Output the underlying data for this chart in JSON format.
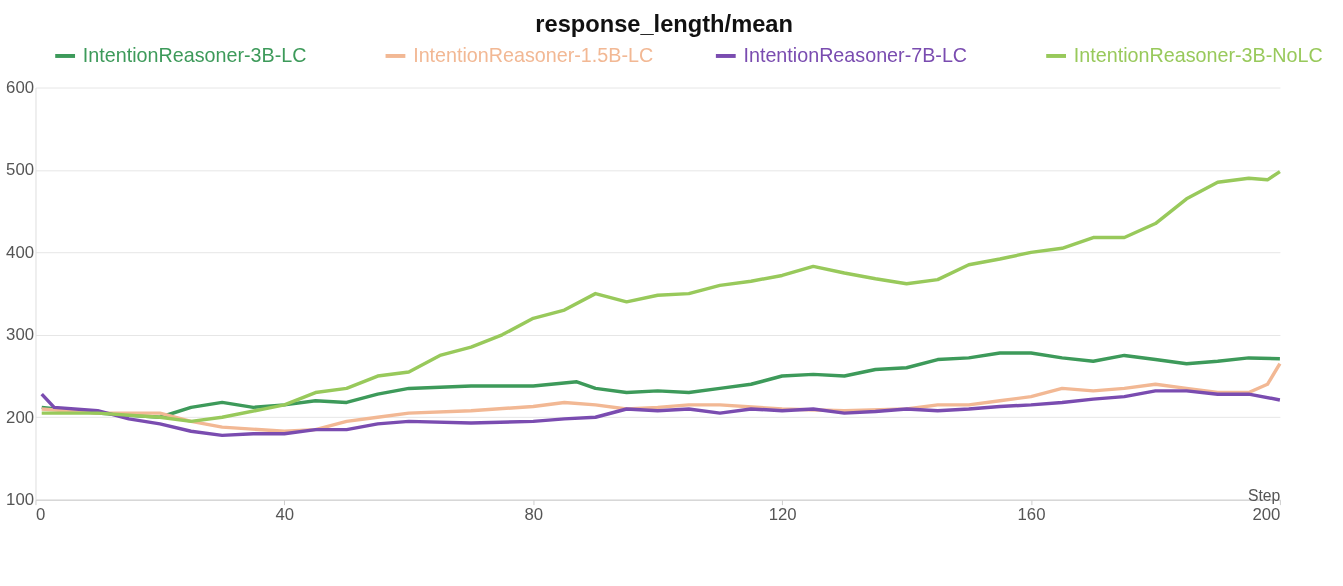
{
  "chart_data": {
    "type": "line",
    "title": "response_length/mean",
    "xlabel": "Step",
    "xlim": [
      0,
      200
    ],
    "xticks": [
      0,
      40,
      80,
      120,
      160,
      200
    ],
    "ylim": [
      100,
      600
    ],
    "yticks": [
      100,
      200,
      300,
      400,
      500,
      600
    ],
    "grid": "y",
    "legend": "top",
    "line_style": "solid",
    "series": [
      {
        "name": "IntentionReasoner-3B-LC",
        "color": "#3d9a5a",
        "x": [
          1,
          10,
          20,
          25,
          30,
          35,
          40,
          45,
          50,
          55,
          60,
          70,
          80,
          87,
          90,
          95,
          100,
          105,
          110,
          115,
          120,
          125,
          130,
          135,
          140,
          145,
          150,
          155,
          160,
          165,
          170,
          175,
          180,
          185,
          190,
          195,
          200
        ],
        "values": [
          212,
          205,
          200,
          212,
          218,
          212,
          215,
          220,
          218,
          228,
          235,
          238,
          238,
          243,
          235,
          230,
          232,
          230,
          235,
          240,
          250,
          252,
          250,
          258,
          260,
          270,
          272,
          278,
          278,
          272,
          268,
          275,
          270,
          265,
          268,
          272,
          271
        ]
      },
      {
        "name": "IntentionReasoner-1.5B-LC",
        "color": "#f2b894",
        "x": [
          1,
          10,
          20,
          25,
          30,
          40,
          45,
          50,
          55,
          60,
          70,
          80,
          85,
          90,
          95,
          100,
          105,
          110,
          120,
          130,
          140,
          145,
          150,
          155,
          160,
          165,
          170,
          175,
          180,
          185,
          190,
          195,
          198,
          200
        ],
        "values": [
          210,
          205,
          205,
          195,
          188,
          183,
          185,
          195,
          200,
          205,
          208,
          213,
          218,
          215,
          210,
          212,
          215,
          215,
          210,
          208,
          210,
          215,
          215,
          220,
          225,
          235,
          232,
          235,
          240,
          235,
          230,
          230,
          240,
          265
        ]
      },
      {
        "name": "IntentionReasoner-7B-LC",
        "color": "#7a4cb0",
        "x": [
          1,
          3,
          10,
          15,
          20,
          25,
          30,
          35,
          40,
          45,
          50,
          55,
          60,
          70,
          80,
          85,
          90,
          95,
          100,
          105,
          110,
          115,
          120,
          125,
          130,
          135,
          140,
          145,
          150,
          155,
          160,
          165,
          170,
          175,
          180,
          185,
          190,
          195,
          200
        ],
        "values": [
          228,
          212,
          208,
          198,
          192,
          183,
          178,
          180,
          180,
          185,
          185,
          192,
          195,
          193,
          195,
          198,
          200,
          210,
          208,
          210,
          205,
          210,
          208,
          210,
          205,
          207,
          210,
          208,
          210,
          213,
          215,
          218,
          222,
          225,
          232,
          232,
          228,
          228,
          221
        ]
      },
      {
        "name": "IntentionReasoner-3B-NoLC",
        "color": "#98c95b",
        "x": [
          1,
          10,
          20,
          25,
          30,
          40,
          45,
          50,
          55,
          60,
          65,
          70,
          75,
          80,
          85,
          90,
          95,
          100,
          105,
          110,
          115,
          120,
          125,
          130,
          135,
          140,
          145,
          150,
          155,
          160,
          165,
          170,
          175,
          180,
          185,
          190,
          195,
          198,
          200
        ],
        "values": [
          205,
          205,
          200,
          195,
          200,
          215,
          230,
          235,
          250,
          255,
          275,
          285,
          300,
          320,
          330,
          350,
          340,
          348,
          350,
          360,
          365,
          372,
          383,
          375,
          368,
          362,
          367,
          385,
          392,
          400,
          405,
          418,
          418,
          435,
          465,
          485,
          490,
          488,
          498
        ]
      }
    ]
  }
}
